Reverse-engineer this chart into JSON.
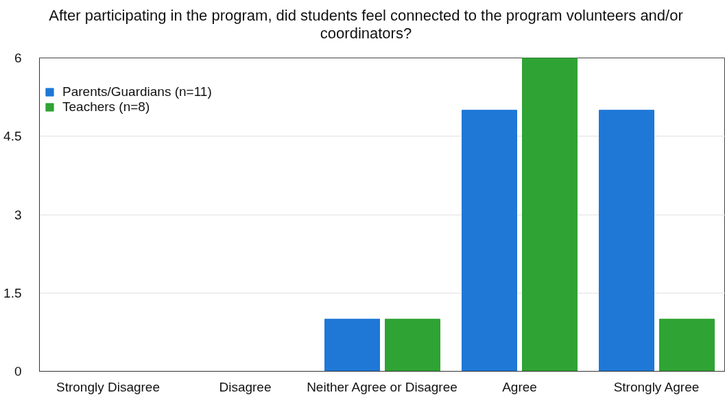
{
  "chart_data": {
    "type": "bar",
    "title": "After participating in the program, did students feel connected to the program volunteers and/or coordinators?",
    "categories": [
      "Strongly Disagree",
      "Disagree",
      "Neither Agree or Disagree",
      "Agree",
      "Strongly Agree"
    ],
    "series": [
      {
        "name": "Parents/Guardians (n=11)",
        "color": "#1f78d6",
        "values": [
          0,
          0,
          1,
          5,
          5
        ]
      },
      {
        "name": "Teachers (n=8)",
        "color": "#2fa334",
        "values": [
          0,
          0,
          1,
          6,
          1
        ]
      }
    ],
    "ylim": [
      0,
      6
    ],
    "yticks": [
      0,
      1.5,
      3,
      4.5,
      6
    ],
    "grid": "y",
    "legend": "top left"
  }
}
